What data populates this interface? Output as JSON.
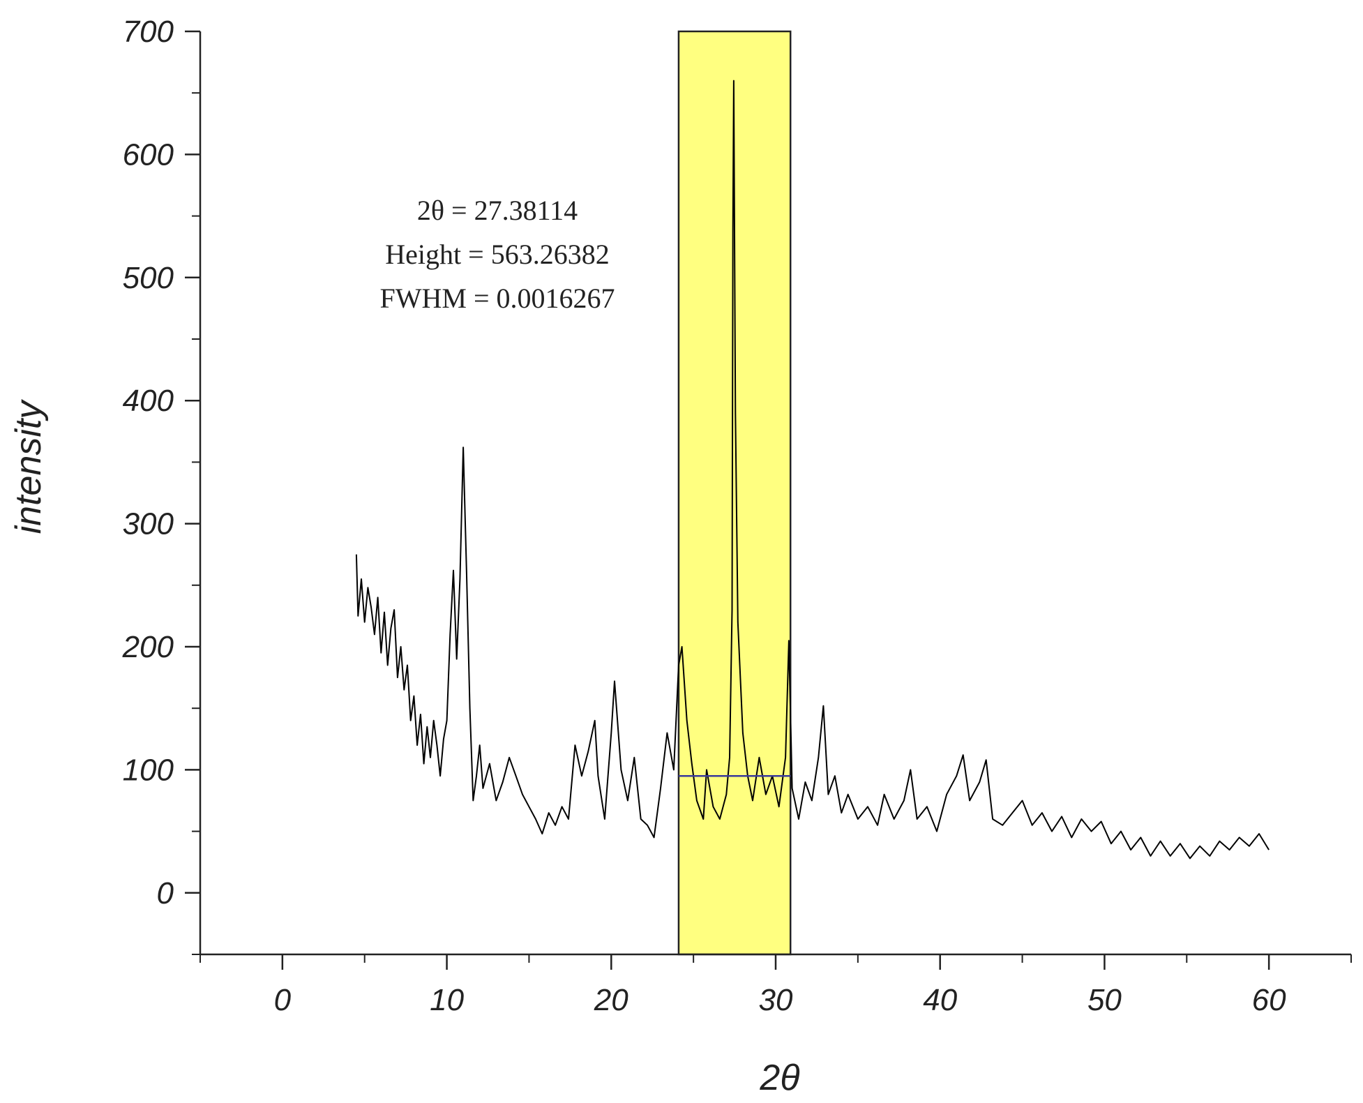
{
  "chart_data": {
    "type": "line",
    "title": "",
    "xlabel": "2θ",
    "ylabel": "intensity",
    "xlim": [
      -5,
      65
    ],
    "ylim": [
      -50,
      700
    ],
    "xticks": [
      0,
      10,
      20,
      30,
      40,
      50,
      60
    ],
    "yticks": [
      0,
      100,
      200,
      300,
      400,
      500,
      600,
      700
    ],
    "grid": false,
    "highlight": {
      "x_start": 24.1,
      "x_end": 30.9,
      "color": "#ffff80"
    },
    "baseline": {
      "x_start": 24.1,
      "x_end": 30.9,
      "y": 95,
      "color": "#3a3a9a"
    },
    "annotation": {
      "lines": [
        "2θ = 27.38114",
        "Height = 563.26382",
        "FWHM = 0.0016267"
      ]
    },
    "series": [
      {
        "color": "#000000",
        "points": [
          [
            4.5,
            275
          ],
          [
            4.6,
            225
          ],
          [
            4.8,
            255
          ],
          [
            5.0,
            220
          ],
          [
            5.2,
            248
          ],
          [
            5.4,
            232
          ],
          [
            5.6,
            210
          ],
          [
            5.8,
            240
          ],
          [
            6.0,
            195
          ],
          [
            6.2,
            228
          ],
          [
            6.4,
            185
          ],
          [
            6.6,
            215
          ],
          [
            6.8,
            230
          ],
          [
            7.0,
            175
          ],
          [
            7.2,
            200
          ],
          [
            7.4,
            165
          ],
          [
            7.6,
            185
          ],
          [
            7.8,
            140
          ],
          [
            8.0,
            160
          ],
          [
            8.2,
            120
          ],
          [
            8.4,
            145
          ],
          [
            8.6,
            105
          ],
          [
            8.8,
            135
          ],
          [
            9.0,
            110
          ],
          [
            9.2,
            140
          ],
          [
            9.4,
            120
          ],
          [
            9.6,
            95
          ],
          [
            9.8,
            125
          ],
          [
            10.0,
            140
          ],
          [
            10.2,
            210
          ],
          [
            10.4,
            262
          ],
          [
            10.6,
            190
          ],
          [
            10.8,
            255
          ],
          [
            11.0,
            362
          ],
          [
            11.2,
            260
          ],
          [
            11.4,
            150
          ],
          [
            11.6,
            75
          ],
          [
            11.8,
            95
          ],
          [
            12.0,
            120
          ],
          [
            12.2,
            85
          ],
          [
            12.6,
            105
          ],
          [
            13.0,
            75
          ],
          [
            13.4,
            90
          ],
          [
            13.8,
            110
          ],
          [
            14.2,
            95
          ],
          [
            14.6,
            80
          ],
          [
            15.0,
            70
          ],
          [
            15.4,
            60
          ],
          [
            15.8,
            48
          ],
          [
            16.2,
            65
          ],
          [
            16.6,
            55
          ],
          [
            17.0,
            70
          ],
          [
            17.4,
            60
          ],
          [
            17.8,
            120
          ],
          [
            18.2,
            95
          ],
          [
            18.6,
            115
          ],
          [
            19.0,
            140
          ],
          [
            19.2,
            95
          ],
          [
            19.6,
            60
          ],
          [
            20.0,
            130
          ],
          [
            20.2,
            172
          ],
          [
            20.6,
            100
          ],
          [
            21.0,
            75
          ],
          [
            21.4,
            110
          ],
          [
            21.8,
            60
          ],
          [
            22.2,
            55
          ],
          [
            22.6,
            45
          ],
          [
            23.0,
            85
          ],
          [
            23.4,
            130
          ],
          [
            23.8,
            100
          ],
          [
            24.1,
            185
          ],
          [
            24.3,
            200
          ],
          [
            24.6,
            140
          ],
          [
            24.9,
            105
          ],
          [
            25.2,
            75
          ],
          [
            25.6,
            60
          ],
          [
            25.8,
            100
          ],
          [
            26.2,
            70
          ],
          [
            26.6,
            60
          ],
          [
            27.0,
            80
          ],
          [
            27.2,
            110
          ],
          [
            27.35,
            230
          ],
          [
            27.4,
            540
          ],
          [
            27.45,
            660
          ],
          [
            27.55,
            390
          ],
          [
            27.7,
            220
          ],
          [
            28.0,
            130
          ],
          [
            28.3,
            95
          ],
          [
            28.6,
            75
          ],
          [
            29.0,
            110
          ],
          [
            29.4,
            80
          ],
          [
            29.8,
            95
          ],
          [
            30.2,
            70
          ],
          [
            30.6,
            110
          ],
          [
            30.8,
            205
          ],
          [
            31.0,
            85
          ],
          [
            31.4,
            60
          ],
          [
            31.8,
            90
          ],
          [
            32.2,
            75
          ],
          [
            32.6,
            110
          ],
          [
            32.9,
            152
          ],
          [
            33.2,
            80
          ],
          [
            33.6,
            95
          ],
          [
            34.0,
            65
          ],
          [
            34.4,
            80
          ],
          [
            35.0,
            60
          ],
          [
            35.6,
            70
          ],
          [
            36.2,
            55
          ],
          [
            36.6,
            80
          ],
          [
            37.2,
            60
          ],
          [
            37.8,
            75
          ],
          [
            38.2,
            100
          ],
          [
            38.6,
            60
          ],
          [
            39.2,
            70
          ],
          [
            39.8,
            50
          ],
          [
            40.4,
            80
          ],
          [
            41.0,
            95
          ],
          [
            41.4,
            112
          ],
          [
            41.8,
            75
          ],
          [
            42.4,
            90
          ],
          [
            42.8,
            108
          ],
          [
            43.2,
            60
          ],
          [
            43.8,
            55
          ],
          [
            44.4,
            65
          ],
          [
            45.0,
            75
          ],
          [
            45.6,
            55
          ],
          [
            46.2,
            65
          ],
          [
            46.8,
            50
          ],
          [
            47.4,
            62
          ],
          [
            48.0,
            45
          ],
          [
            48.6,
            60
          ],
          [
            49.2,
            50
          ],
          [
            49.8,
            58
          ],
          [
            50.4,
            40
          ],
          [
            51.0,
            50
          ],
          [
            51.6,
            35
          ],
          [
            52.2,
            45
          ],
          [
            52.8,
            30
          ],
          [
            53.4,
            42
          ],
          [
            54.0,
            30
          ],
          [
            54.6,
            40
          ],
          [
            55.2,
            28
          ],
          [
            55.8,
            38
          ],
          [
            56.4,
            30
          ],
          [
            57.0,
            42
          ],
          [
            57.6,
            35
          ],
          [
            58.2,
            45
          ],
          [
            58.8,
            38
          ],
          [
            59.4,
            48
          ],
          [
            60.0,
            35
          ]
        ]
      }
    ]
  }
}
